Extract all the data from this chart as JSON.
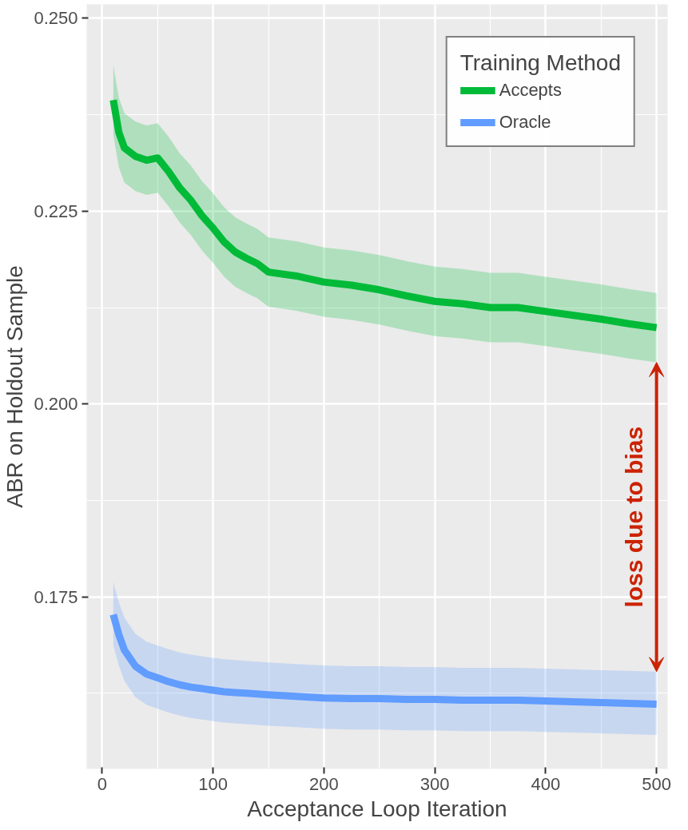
{
  "chart_data": {
    "type": "line",
    "xlabel": "Acceptance Loop Iteration",
    "ylabel": "ABR on Holdout Sample",
    "legend_title": "Training Method",
    "x": [
      10,
      15,
      20,
      30,
      40,
      50,
      60,
      70,
      80,
      90,
      100,
      110,
      120,
      130,
      140,
      150,
      175,
      200,
      225,
      250,
      275,
      300,
      325,
      350,
      375,
      400,
      425,
      450,
      475,
      500
    ],
    "series": [
      {
        "name": "Accepts",
        "color": "#00ba38",
        "values": [
          0.2394,
          0.2352,
          0.2332,
          0.2321,
          0.2316,
          0.2319,
          0.2301,
          0.228,
          0.2264,
          0.2244,
          0.2228,
          0.221,
          0.2197,
          0.2189,
          0.2182,
          0.2171,
          0.2166,
          0.2158,
          0.2154,
          0.2148,
          0.214,
          0.2133,
          0.213,
          0.2125,
          0.2125,
          0.212,
          0.2115,
          0.211,
          0.2104,
          0.2099
        ],
        "upper": [
          0.2439,
          0.2397,
          0.2377,
          0.2366,
          0.2361,
          0.2364,
          0.2346,
          0.2325,
          0.2309,
          0.2289,
          0.2273,
          0.2255,
          0.2242,
          0.2234,
          0.2227,
          0.2216,
          0.2211,
          0.2203,
          0.2199,
          0.2193,
          0.2185,
          0.2178,
          0.2175,
          0.217,
          0.217,
          0.2165,
          0.216,
          0.2155,
          0.2149,
          0.2144
        ],
        "lower": [
          0.2349,
          0.2307,
          0.2287,
          0.2276,
          0.2271,
          0.2274,
          0.2256,
          0.2235,
          0.2219,
          0.2199,
          0.2183,
          0.2165,
          0.2152,
          0.2144,
          0.2137,
          0.2126,
          0.2121,
          0.2113,
          0.2109,
          0.2103,
          0.2095,
          0.2088,
          0.2085,
          0.208,
          0.208,
          0.2075,
          0.207,
          0.2065,
          0.2059,
          0.2054
        ]
      },
      {
        "name": "Oracle",
        "color": "#619cff",
        "values": [
          0.1727,
          0.1701,
          0.1681,
          0.166,
          0.165,
          0.1645,
          0.164,
          0.1636,
          0.1633,
          0.1631,
          0.1629,
          0.1627,
          0.1626,
          0.1625,
          0.1624,
          0.1623,
          0.1621,
          0.1619,
          0.1618,
          0.1618,
          0.1617,
          0.1617,
          0.1616,
          0.1616,
          0.1616,
          0.1615,
          0.1614,
          0.1613,
          0.1612,
          0.1611
        ],
        "upper": [
          0.1769,
          0.1743,
          0.1723,
          0.1702,
          0.1692,
          0.1687,
          0.1682,
          0.1678,
          0.1675,
          0.1673,
          0.1671,
          0.1669,
          0.1668,
          0.1667,
          0.1666,
          0.1665,
          0.1663,
          0.1661,
          0.166,
          0.166,
          0.1659,
          0.1659,
          0.1658,
          0.1658,
          0.1658,
          0.1657,
          0.1656,
          0.1655,
          0.1654,
          0.1653
        ],
        "lower": [
          0.1687,
          0.1661,
          0.1641,
          0.162,
          0.161,
          0.1605,
          0.16,
          0.1596,
          0.1593,
          0.1591,
          0.1589,
          0.1587,
          0.1586,
          0.1585,
          0.1584,
          0.1583,
          0.1581,
          0.1579,
          0.1578,
          0.1578,
          0.1577,
          0.1577,
          0.1576,
          0.1576,
          0.1576,
          0.1575,
          0.1574,
          0.1573,
          0.1572,
          0.1571
        ]
      }
    ],
    "annotations": [
      "loss due to bias"
    ],
    "xlim": [
      -14,
      510
    ],
    "ylim": [
      0.1527,
      0.2518
    ],
    "xticks": [
      0,
      100,
      200,
      300,
      400,
      500
    ],
    "yticks": [
      {
        "value": 0.175,
        "label": "0.175"
      },
      {
        "value": 0.2,
        "label": "0.200"
      },
      {
        "value": 0.225,
        "label": "0.225"
      },
      {
        "value": 0.25,
        "label": "0.250"
      }
    ],
    "grid": true,
    "legend": "top right",
    "line_style": "solid",
    "marker": "none"
  }
}
